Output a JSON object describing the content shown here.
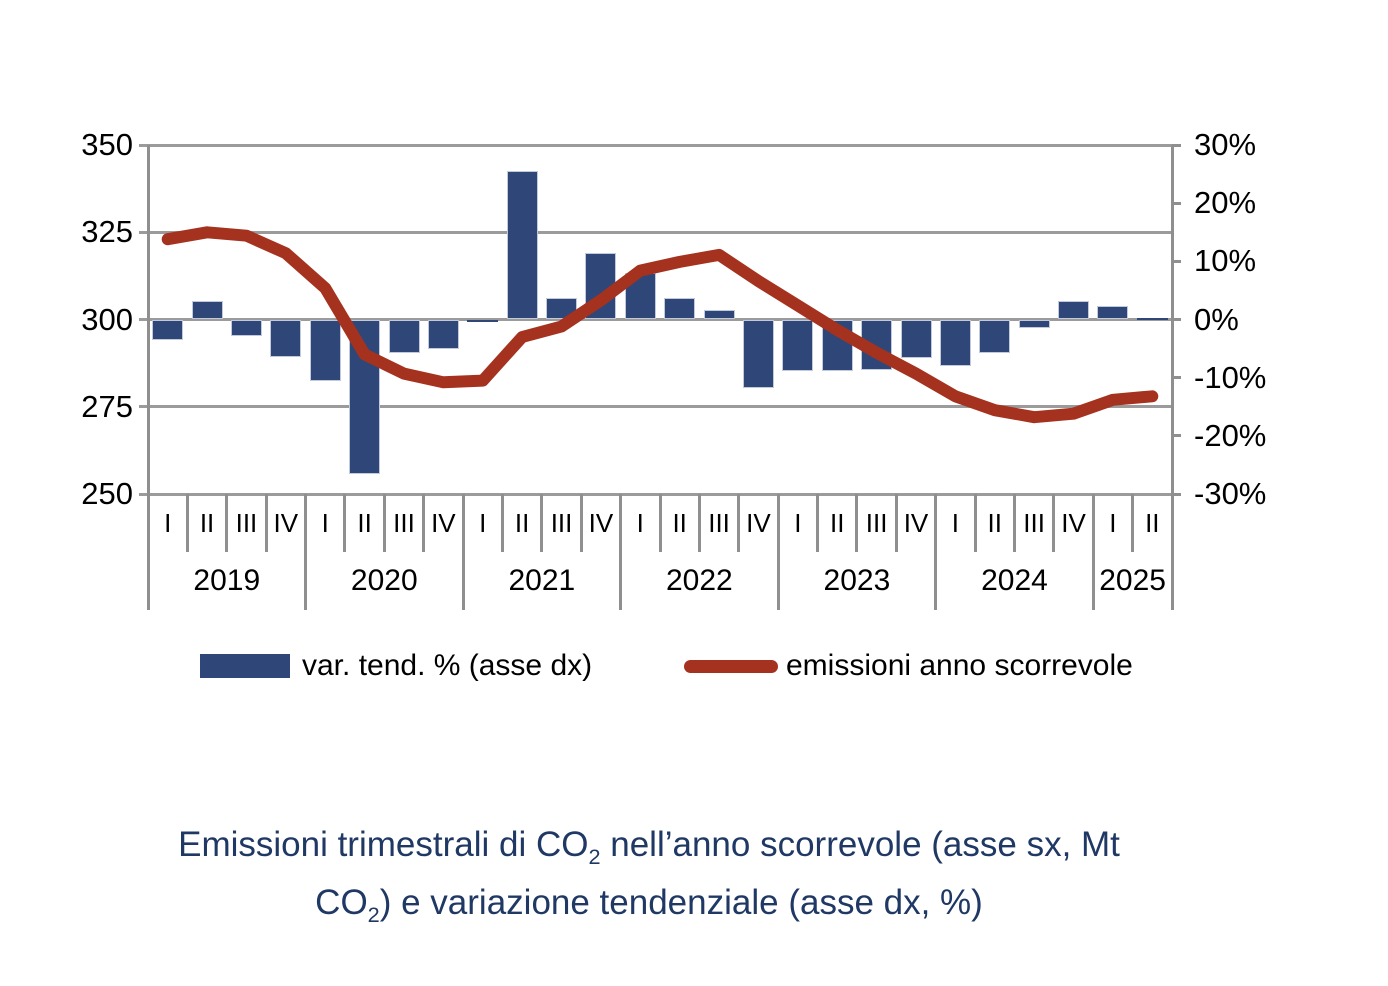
{
  "chart_data": {
    "type": "combo-bar-line",
    "quarter_labels": [
      "I",
      "II",
      "III",
      "IV",
      "I",
      "II",
      "III",
      "IV",
      "I",
      "II",
      "III",
      "IV",
      "I",
      "II",
      "III",
      "IV",
      "I",
      "II",
      "III",
      "IV",
      "I",
      "II",
      "III",
      "IV",
      "I",
      "II"
    ],
    "year_groups": [
      {
        "label": "2019",
        "count": 4
      },
      {
        "label": "2020",
        "count": 4
      },
      {
        "label": "2021",
        "count": 4
      },
      {
        "label": "2022",
        "count": 4
      },
      {
        "label": "2023",
        "count": 4
      },
      {
        "label": "2024",
        "count": 4
      },
      {
        "label": "2025",
        "count": 2
      }
    ],
    "series": [
      {
        "name": "var. tend. % (asse dx)",
        "type": "bar",
        "axis": "right",
        "color": "#2F4778",
        "values": [
          -3.6,
          3.1,
          -2.9,
          -6.5,
          -10.6,
          -26.5,
          -5.8,
          -5.1,
          -0.5,
          25.6,
          3.7,
          11.4,
          8.0,
          3.7,
          1.6,
          -11.8,
          -8.9,
          -8.9,
          -8.7,
          -6.6,
          -8.0,
          -5.7,
          -1.4,
          3.2,
          2.4,
          0.3
        ]
      },
      {
        "name": "emissioni anno scorrevole",
        "type": "line",
        "axis": "left",
        "color": "#A5321E",
        "values": [
          323,
          325,
          324,
          319,
          309,
          290,
          284.5,
          282,
          282.5,
          295,
          298,
          305.5,
          314,
          316.5,
          318.5,
          311,
          304,
          297,
          290.5,
          284.5,
          278,
          274,
          272,
          273,
          277,
          278
        ]
      }
    ],
    "left_axis": {
      "min": 250,
      "max": 350,
      "ticks": [
        350,
        325,
        300,
        275,
        250
      ]
    },
    "right_axis": {
      "min": -30,
      "max": 30,
      "ticks": [
        "30%",
        "20%",
        "10%",
        "0%",
        "-10%",
        "-20%",
        "-30%"
      ]
    },
    "grid": "horizontal",
    "legend_position": "bottom"
  },
  "caption": {
    "l1a": "Emissioni trimestrali di CO",
    "l1sub": "2",
    "l1b": " nell’anno scorrevole (asse sx, Mt",
    "l2a": "CO",
    "l2sub": "2",
    "l2b": ") e variazione tendenziale (asse dx, %)"
  }
}
